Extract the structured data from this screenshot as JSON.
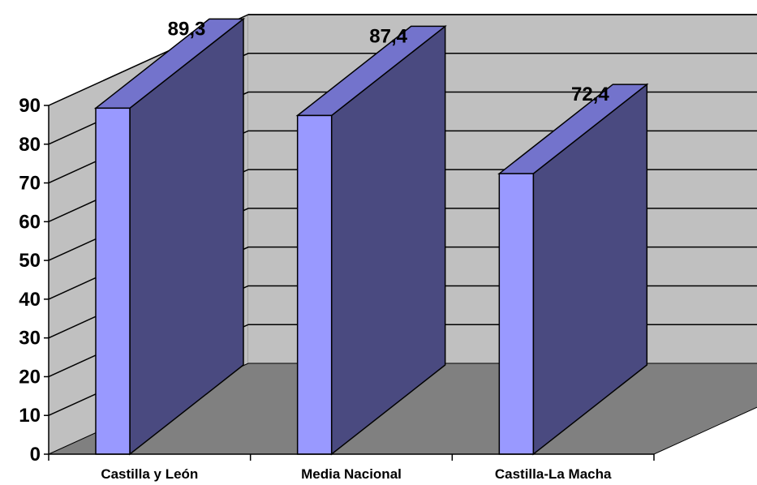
{
  "chart_data": {
    "type": "bar",
    "categories": [
      "Castilla y León",
      "Media Nacional",
      "Castilla-La Macha"
    ],
    "values": [
      89.3,
      87.4,
      72.4
    ],
    "data_labels": [
      "89,3",
      "87,4",
      "72,4"
    ],
    "ylim": [
      0,
      90
    ],
    "yticks": [
      "0",
      "10",
      "20",
      "30",
      "40",
      "50",
      "60",
      "70",
      "80",
      "90"
    ],
    "grid": true,
    "legend": "none",
    "colors": {
      "bar_front": "#9999ff",
      "bar_side": "#4a4a80",
      "bar_top": "#7373cc",
      "back_wall": "#c0c0c0",
      "side_wall": "#c0c0c0",
      "floor": "#808080"
    }
  }
}
